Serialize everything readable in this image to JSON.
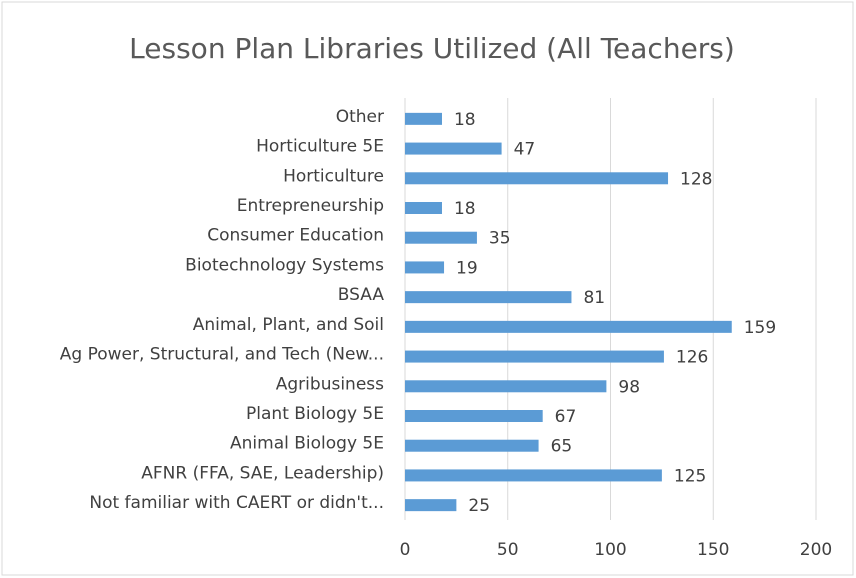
{
  "chart_data": {
    "type": "barh",
    "title": "Lesson Plan Libraries Utilized (All Teachers)",
    "categories": [
      "Other",
      "Horticulture 5E",
      "Horticulture",
      "Entrepreneurship",
      "Consumer Education",
      "Biotechnology Systems",
      "BSAA",
      "Animal, Plant, and Soil",
      "Ag Power, Structural, and Tech (New...",
      "Agribusiness",
      "Plant Biology 5E",
      "Animal Biology 5E",
      "AFNR (FFA, SAE, Leadership)",
      "Not familiar with CAERT  or didn't..."
    ],
    "values": [
      18,
      47,
      128,
      18,
      35,
      19,
      81,
      159,
      126,
      98,
      67,
      65,
      125,
      25
    ],
    "color": "#5b9bd5",
    "xlim": [
      0,
      200
    ],
    "xticks": [
      0,
      50,
      100,
      150,
      200
    ],
    "grid": true
  }
}
